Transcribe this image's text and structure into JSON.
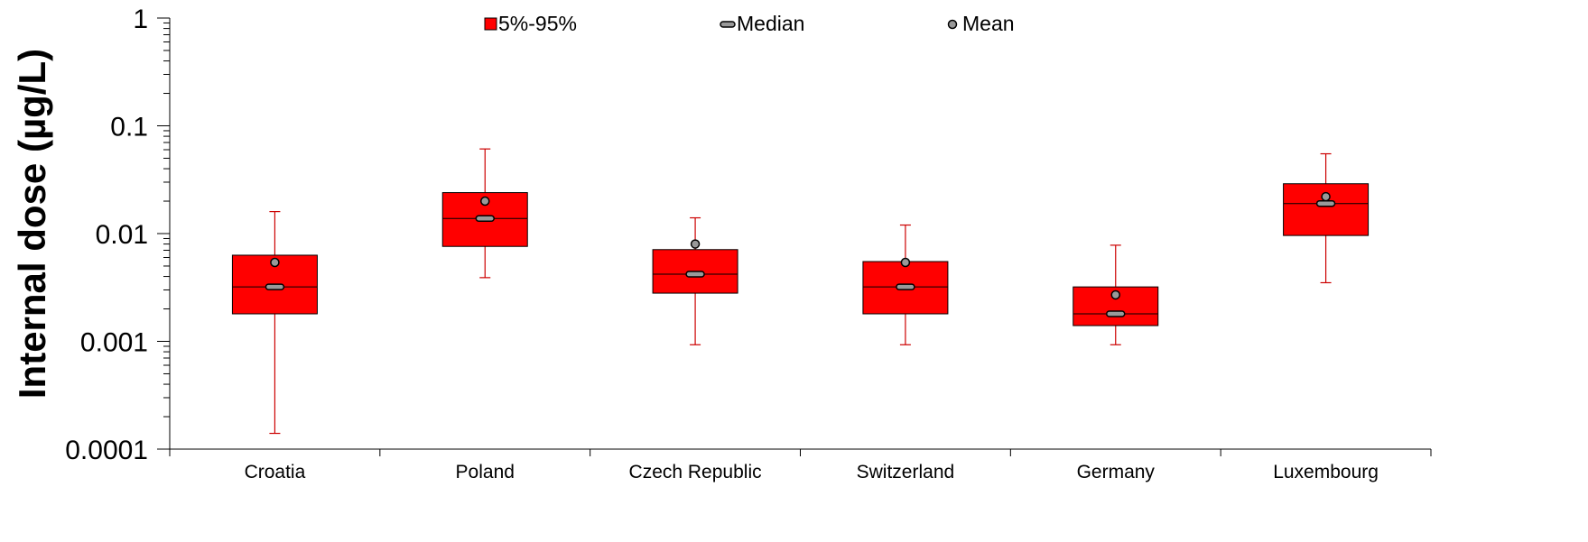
{
  "chart_data": {
    "type": "box",
    "title": "",
    "xlabel": "",
    "ylabel": "Internal dose (µg/L)",
    "yscale": "log",
    "ylim": [
      0.0001,
      1
    ],
    "yticks": [
      {
        "value": 0.0001,
        "label": "0.0001"
      },
      {
        "value": 0.001,
        "label": "0.001"
      },
      {
        "value": 0.01,
        "label": "0.01"
      },
      {
        "value": 0.1,
        "label": "0.1"
      },
      {
        "value": 1,
        "label": "1"
      }
    ],
    "legend": {
      "position": "top",
      "entries": [
        {
          "key": "box",
          "label": "5%-95%"
        },
        {
          "key": "median",
          "label": "Median"
        },
        {
          "key": "mean",
          "label": "Mean"
        }
      ]
    },
    "colors": {
      "box_fill": "#ff0000",
      "box_edge": "#000000",
      "whisker": "#cc0000",
      "mean_marker": "#999999"
    },
    "categories": [
      "Croatia",
      "Poland",
      "Czech Republic",
      "Switzerland",
      "Germany",
      "Luxembourg"
    ],
    "boxes": [
      {
        "category": "Croatia",
        "whisker_low": 0.00014,
        "q1": 0.0018,
        "median": 0.0032,
        "q3": 0.0063,
        "whisker_high": 0.016,
        "mean": 0.0054
      },
      {
        "category": "Poland",
        "whisker_low": 0.0039,
        "q1": 0.0076,
        "median": 0.0138,
        "q3": 0.024,
        "whisker_high": 0.061,
        "mean": 0.02
      },
      {
        "category": "Czech Republic",
        "whisker_low": 0.00093,
        "q1": 0.0028,
        "median": 0.0042,
        "q3": 0.0071,
        "whisker_high": 0.014,
        "mean": 0.008
      },
      {
        "category": "Switzerland",
        "whisker_low": 0.00093,
        "q1": 0.0018,
        "median": 0.0032,
        "q3": 0.0055,
        "whisker_high": 0.012,
        "mean": 0.0054
      },
      {
        "category": "Germany",
        "whisker_low": 0.00093,
        "q1": 0.0014,
        "median": 0.0018,
        "q3": 0.0032,
        "whisker_high": 0.0078,
        "mean": 0.0027
      },
      {
        "category": "Luxembourg",
        "whisker_low": 0.0035,
        "q1": 0.0096,
        "median": 0.019,
        "q3": 0.029,
        "whisker_high": 0.055,
        "mean": 0.022
      }
    ]
  }
}
